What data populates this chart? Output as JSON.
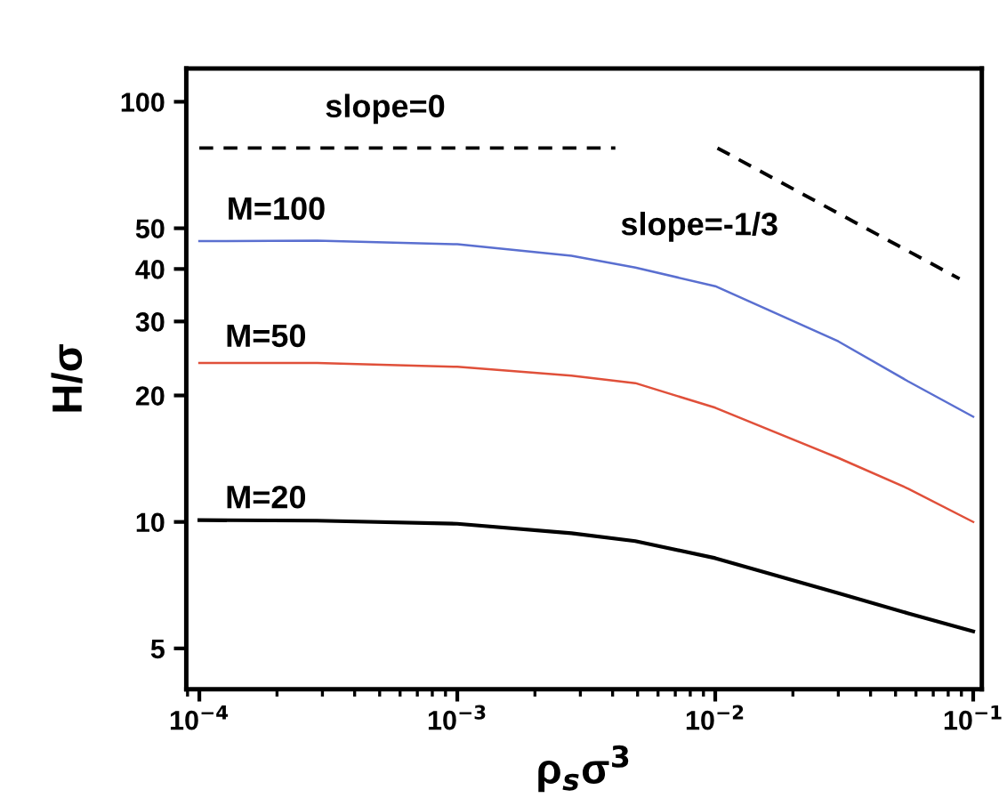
{
  "chart_data": {
    "type": "line",
    "xlabel": "ρ$_{s}$σ$^{3}$",
    "ylabel": "H/σ",
    "log": "xy",
    "grid": false,
    "marker": "none",
    "xlim": [
      8.9e-05,
      0.108
    ],
    "ylim": [
      4,
      120
    ],
    "xticks": [
      {
        "value": 0.0001,
        "label": "10$^{−4}$"
      },
      {
        "value": 0.001,
        "label": "10$^{−3}$"
      },
      {
        "value": 0.01,
        "label": "10$^{−2}$"
      },
      {
        "value": 0.1,
        "label": "10$^{−1}$"
      }
    ],
    "yticks": [
      5,
      10,
      20,
      30,
      40,
      50,
      100
    ],
    "series": [
      {
        "color": "#5a6fd0",
        "line_style": "solid",
        "x": [
          0.0001,
          0.000286,
          0.001,
          0.00277,
          0.0049,
          0.01,
          0.03,
          0.056,
          0.1
        ],
        "values": [
          46.6,
          46.7,
          45.8,
          43.0,
          40.3,
          36.4,
          26.9,
          21.6,
          17.8
        ]
      },
      {
        "color": "#e0503a",
        "line_style": "solid",
        "x": [
          0.0001,
          0.000286,
          0.001,
          0.00277,
          0.0049,
          0.01,
          0.03,
          0.056,
          0.1
        ],
        "values": [
          23.9,
          23.9,
          23.4,
          22.3,
          21.4,
          18.7,
          14.2,
          12.0,
          10.0
        ]
      },
      {
        "color": "#000000",
        "line_style": "solid",
        "x": [
          0.0001,
          0.000286,
          0.001,
          0.00277,
          0.0049,
          0.01,
          0.03,
          0.056,
          0.1
        ],
        "values": [
          10.1,
          10.07,
          9.9,
          9.4,
          9.0,
          8.2,
          6.77,
          6.06,
          5.49
        ]
      },
      {
        "color": "#000000",
        "line_style": "dashed",
        "x": [
          0.0001,
          0.0041
        ],
        "values": [
          77.6,
          77.6
        ]
      },
      {
        "color": "#000000",
        "line_style": "dashed",
        "x": [
          0.0102,
          0.0885
        ],
        "values": [
          77.6,
          37.9
        ]
      }
    ],
    "annotations": [
      "slope=0",
      "slope=-1/3",
      "M=100",
      "M=50",
      "M=20"
    ]
  }
}
